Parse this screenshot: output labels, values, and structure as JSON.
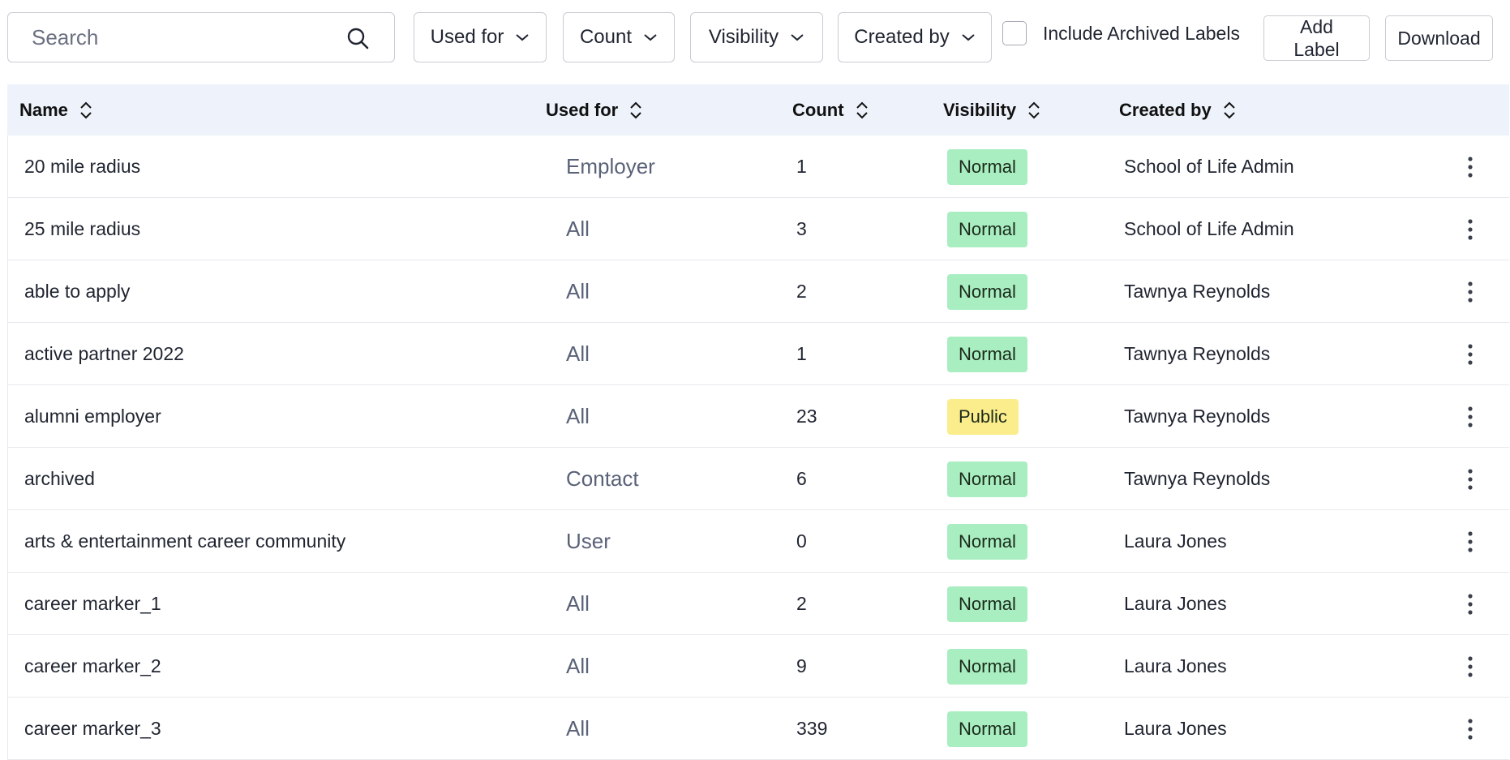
{
  "toolbar": {
    "search": {
      "placeholder": "Search",
      "icon": "search-icon"
    },
    "filters": [
      {
        "label": "Used for"
      },
      {
        "label": "Count"
      },
      {
        "label": "Visibility"
      },
      {
        "label": "Created by"
      }
    ],
    "include_archived_label": "Include Archived Labels",
    "add_label_line1": "Add",
    "add_label_line2": "Label",
    "download_label": "Download"
  },
  "table": {
    "columns": [
      "Name",
      "Used for",
      "Count",
      "Visibility",
      "Created by"
    ],
    "rows": [
      {
        "name": "20 mile radius",
        "used_for": "Employer",
        "count": "1",
        "visibility": "Normal",
        "created_by": "School of Life Admin"
      },
      {
        "name": "25 mile radius",
        "used_for": "All",
        "count": "3",
        "visibility": "Normal",
        "created_by": "School of Life Admin"
      },
      {
        "name": "able to apply",
        "used_for": "All",
        "count": "2",
        "visibility": "Normal",
        "created_by": "Tawnya Reynolds"
      },
      {
        "name": "active partner 2022",
        "used_for": "All",
        "count": "1",
        "visibility": "Normal",
        "created_by": "Tawnya Reynolds"
      },
      {
        "name": "alumni employer",
        "used_for": "All",
        "count": "23",
        "visibility": "Public",
        "created_by": "Tawnya Reynolds"
      },
      {
        "name": "archived",
        "used_for": "Contact",
        "count": "6",
        "visibility": "Normal",
        "created_by": "Tawnya Reynolds"
      },
      {
        "name": "arts & entertainment career community",
        "used_for": "User",
        "count": "0",
        "visibility": "Normal",
        "created_by": "Laura Jones"
      },
      {
        "name": "career marker_1",
        "used_for": "All",
        "count": "2",
        "visibility": "Normal",
        "created_by": "Laura Jones"
      },
      {
        "name": "career marker_2",
        "used_for": "All",
        "count": "9",
        "visibility": "Normal",
        "created_by": "Laura Jones"
      },
      {
        "name": "career marker_3",
        "used_for": "All",
        "count": "339",
        "visibility": "Normal",
        "created_by": "Laura Jones"
      }
    ]
  },
  "colors": {
    "header_bg": "#eef3fb",
    "badge_normal": "#a8eec1",
    "badge_public": "#fbed8c"
  }
}
